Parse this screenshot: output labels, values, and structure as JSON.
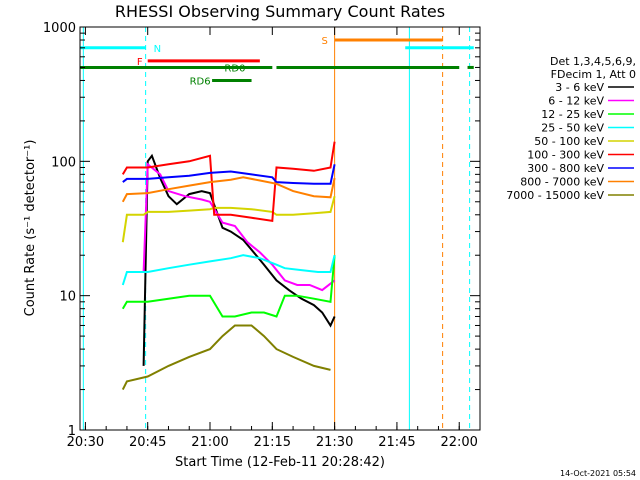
{
  "chart_data": {
    "type": "line",
    "title": "RHESSI Observing Summary Count Rates",
    "xlabel": "Start Time (12-Feb-11 20:28:42)",
    "ylabel": "Count Rate (s⁻¹ detector⁻¹)",
    "yscale": "log",
    "xlim": [
      "20:28:42",
      "22:05:00"
    ],
    "ylim": [
      1,
      1000
    ],
    "x_ticks": [
      "20:30",
      "20:45",
      "21:00",
      "21:15",
      "21:30",
      "21:45",
      "22:00"
    ],
    "y_ticks": [
      "1",
      "10",
      "100",
      "1000"
    ],
    "detector_info": [
      "Det 1,3,4,5,6,9,",
      "FDecim 1, Att 0"
    ],
    "footer": "14-Oct-2021 05:54",
    "series": [
      {
        "name": "3 - 6 keV",
        "color": "#000000",
        "x": [
          "20:44:00",
          "20:45:00",
          "20:46:00",
          "20:48:00",
          "20:50:00",
          "20:52:00",
          "20:55:00",
          "20:58:00",
          "21:00:00",
          "21:03:00",
          "21:05:00",
          "21:08:00",
          "21:10:00",
          "21:13:00",
          "21:16:00",
          "21:19:00",
          "21:22:00",
          "21:25:00",
          "21:27:00",
          "21:29:00",
          "21:30:00"
        ],
        "y": [
          3,
          100,
          110,
          75,
          55,
          48,
          57,
          60,
          58,
          32,
          30,
          26,
          22,
          17,
          13,
          11,
          9.5,
          8.5,
          7.5,
          6,
          7
        ]
      },
      {
        "name": "6 - 12 keV",
        "color": "#ff00ff",
        "x": [
          "20:44:00",
          "20:45:00",
          "20:48:00",
          "20:50:00",
          "20:54:00",
          "20:58:00",
          "21:00:00",
          "21:03:00",
          "21:06:00",
          "21:09:00",
          "21:12:00",
          "21:15:00",
          "21:18:00",
          "21:21:00",
          "21:24:00",
          "21:27:00",
          "21:30:00"
        ],
        "y": [
          15,
          95,
          80,
          60,
          55,
          52,
          50,
          35,
          33,
          25,
          21,
          17,
          13,
          12,
          12,
          11,
          13
        ]
      },
      {
        "name": "12 - 25 keV",
        "color": "#00ff00",
        "x": [
          "20:39:00",
          "20:40:00",
          "20:45:00",
          "20:50:00",
          "20:55:00",
          "21:00:00",
          "21:03:00",
          "21:06:00",
          "21:10:00",
          "21:13:00",
          "21:16:00",
          "21:18:00",
          "21:21:00",
          "21:25:00",
          "21:29:00",
          "21:30:00"
        ],
        "y": [
          8,
          9,
          9,
          9.5,
          10,
          10,
          7,
          7,
          7.5,
          7.5,
          7,
          10,
          10,
          9.5,
          9,
          20
        ]
      },
      {
        "name": "25 - 50 keV",
        "color": "#00ffff",
        "x": [
          "20:39:00",
          "20:40:00",
          "20:45:00",
          "20:50:00",
          "20:55:00",
          "21:00:00",
          "21:05:00",
          "21:08:00",
          "21:12:00",
          "21:16:00",
          "21:18:00",
          "21:22:00",
          "21:26:00",
          "21:29:00",
          "21:30:00"
        ],
        "y": [
          12,
          15,
          15,
          16,
          17,
          18,
          19,
          20,
          19,
          17,
          16,
          15.5,
          15,
          15,
          20
        ]
      },
      {
        "name": "50 - 100 keV",
        "color": "#d4d400",
        "x": [
          "20:39:00",
          "20:40:00",
          "20:44:00",
          "20:45:00",
          "20:50:00",
          "20:55:00",
          "21:00:00",
          "21:01:00",
          "21:05:00",
          "21:10:00",
          "21:15:00",
          "21:16:00",
          "21:20:00",
          "21:25:00",
          "21:29:00",
          "21:30:00"
        ],
        "y": [
          25,
          40,
          40,
          42,
          42,
          43,
          44,
          45,
          45,
          44,
          42,
          40,
          40,
          41,
          42,
          55
        ]
      },
      {
        "name": "100 - 300 keV",
        "color": "#ff0000",
        "x": [
          "20:39:00",
          "20:40:00",
          "20:45:00",
          "20:50:00",
          "20:55:00",
          "21:00:00",
          "21:01:00",
          "21:05:00",
          "21:10:00",
          "21:15:00",
          "21:16:00",
          "21:20:00",
          "21:25:00",
          "21:29:00",
          "21:30:00"
        ],
        "y": [
          80,
          90,
          90,
          95,
          100,
          110,
          40,
          40,
          38,
          36,
          90,
          88,
          85,
          90,
          140
        ]
      },
      {
        "name": "300 - 800 keV",
        "color": "#0000ff",
        "x": [
          "20:39:00",
          "20:40:00",
          "20:45:00",
          "20:50:00",
          "20:55:00",
          "21:00:00",
          "21:05:00",
          "21:10:00",
          "21:15:00",
          "21:16:00",
          "21:20:00",
          "21:25:00",
          "21:29:00",
          "21:30:00"
        ],
        "y": [
          70,
          74,
          74,
          76,
          78,
          82,
          84,
          80,
          76,
          70,
          69,
          68,
          68,
          95
        ]
      },
      {
        "name": "800 - 7000 keV",
        "color": "#ff8000",
        "x": [
          "20:39:00",
          "20:40:00",
          "20:45:00",
          "20:50:00",
          "20:55:00",
          "21:00:00",
          "21:05:00",
          "21:08:00",
          "21:12:00",
          "21:16:00",
          "21:20:00",
          "21:25:00",
          "21:29:00",
          "21:30:00"
        ],
        "y": [
          50,
          57,
          58,
          62,
          66,
          70,
          73,
          76,
          72,
          68,
          60,
          55,
          54,
          75
        ]
      },
      {
        "name": "7000 - 15000 keV",
        "color": "#808000",
        "x": [
          "20:39:00",
          "20:40:00",
          "20:45:00",
          "20:50:00",
          "20:55:00",
          "21:00:00",
          "21:03:00",
          "21:06:00",
          "21:10:00",
          "21:13:00",
          "21:16:00",
          "21:20:00",
          "21:25:00",
          "21:29:00"
        ],
        "y": [
          2,
          2.3,
          2.5,
          3,
          3.5,
          4,
          5,
          6,
          6,
          5,
          4,
          3.5,
          3,
          2.8
        ]
      }
    ],
    "annotations": [
      {
        "label": "N",
        "color": "#00ffff",
        "level": 700,
        "segments": [
          [
            "20:28:42",
            "20:44:30"
          ],
          [
            "21:47:00",
            "22:03:30"
          ]
        ]
      },
      {
        "label": "F",
        "color": "#ff0000",
        "level": 560,
        "segments": [
          [
            "20:45:00",
            "21:12:00"
          ]
        ]
      },
      {
        "label": "S",
        "color": "#ff8000",
        "level": 800,
        "segments": [
          [
            "21:30:00",
            "21:56:00"
          ]
        ]
      },
      {
        "label": "RD0",
        "color": "#008000",
        "level": 500,
        "segments": [
          [
            "20:28:42",
            "21:15:00"
          ],
          [
            "21:16:00",
            "22:00:00"
          ],
          [
            "22:02:00",
            "22:03:30"
          ]
        ]
      },
      {
        "label": "RD6",
        "color": "#008000",
        "level": 400,
        "segments": [
          [
            "21:00:30",
            "21:10:00"
          ]
        ]
      }
    ],
    "vlines": [
      {
        "x": "20:29:30",
        "color": "#00ffff",
        "style": "solid"
      },
      {
        "x": "20:44:30",
        "color": "#00ffff",
        "style": "dashed"
      },
      {
        "x": "21:30:00",
        "color": "#ff8000",
        "style": "solid"
      },
      {
        "x": "21:48:00",
        "color": "#00ffff",
        "style": "solid"
      },
      {
        "x": "21:56:00",
        "color": "#ff8000",
        "style": "dashed"
      },
      {
        "x": "22:02:30",
        "color": "#00ffff",
        "style": "dashed"
      }
    ]
  }
}
